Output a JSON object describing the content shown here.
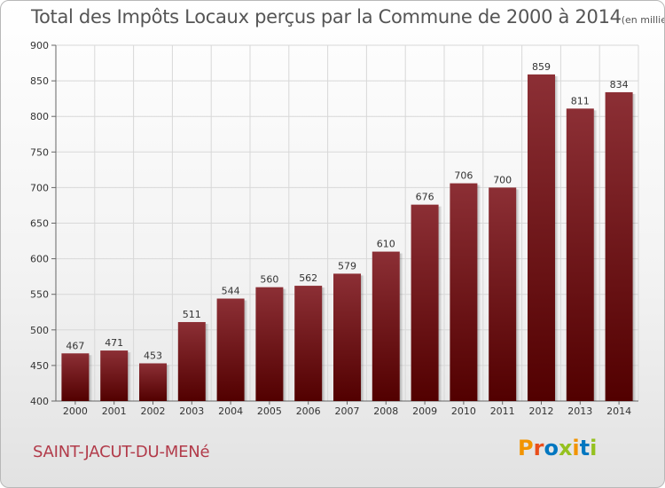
{
  "title": {
    "main": "Total des Impôts Locaux perçus par la Commune de 2000 à 2014",
    "unit": "(en milliers d'€)"
  },
  "commune": "SAINT-JACUT-DU-MENé",
  "logo": {
    "text": "Proxiti",
    "colors": [
      "#f29400",
      "#e94e1b",
      "#0077c0",
      "#95c11f",
      "#f29400",
      "#0077c0",
      "#95c11f"
    ]
  },
  "chart_data": {
    "type": "bar",
    "categories": [
      "2000",
      "2001",
      "2002",
      "2003",
      "2004",
      "2005",
      "2006",
      "2007",
      "2008",
      "2009",
      "2010",
      "2011",
      "2012",
      "2013",
      "2014"
    ],
    "values": [
      467,
      471,
      453,
      511,
      544,
      560,
      562,
      579,
      610,
      676,
      706,
      700,
      859,
      811,
      834
    ],
    "ylim": [
      400,
      900
    ],
    "yticks": [
      400,
      450,
      500,
      550,
      600,
      650,
      700,
      750,
      800,
      850,
      900
    ],
    "grid": true,
    "bar_color_top": "#8c2f35",
    "bar_color_bottom": "#520000"
  }
}
